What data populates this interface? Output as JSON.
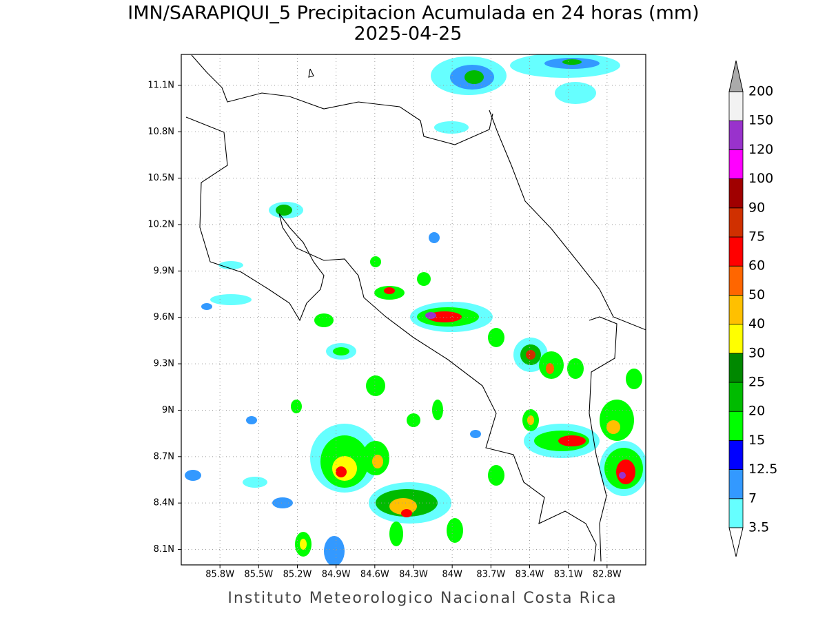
{
  "chart_data": {
    "type": "map",
    "title": "IMN/SARAPIQUI_5 Precipitacion Acumulada en 24 horas (mm)",
    "subtitle": "2025-04-25",
    "footer": "Instituto Meteorologico Nacional Costa Rica",
    "xlim": [
      -86.1,
      -82.5
    ],
    "ylim": [
      8.0,
      11.3
    ],
    "xticks": [
      {
        "value": -85.8,
        "label": "85.8W"
      },
      {
        "value": -85.5,
        "label": "85.5W"
      },
      {
        "value": -85.2,
        "label": "85.2W"
      },
      {
        "value": -84.9,
        "label": "84.9W"
      },
      {
        "value": -84.6,
        "label": "84.6W"
      },
      {
        "value": -84.3,
        "label": "84.3W"
      },
      {
        "value": -84.0,
        "label": "84W"
      },
      {
        "value": -83.7,
        "label": "83.7W"
      },
      {
        "value": -83.4,
        "label": "83.4W"
      },
      {
        "value": -83.1,
        "label": "83.1W"
      },
      {
        "value": -82.8,
        "label": "82.8W"
      }
    ],
    "yticks": [
      {
        "value": 8.1,
        "label": "8.1N"
      },
      {
        "value": 8.4,
        "label": "8.4N"
      },
      {
        "value": 8.7,
        "label": "8.7N"
      },
      {
        "value": 9.0,
        "label": "9N"
      },
      {
        "value": 9.3,
        "label": "9.3N"
      },
      {
        "value": 9.6,
        "label": "9.6N"
      },
      {
        "value": 9.9,
        "label": "9.9N"
      },
      {
        "value": 10.2,
        "label": "10.2N"
      },
      {
        "value": 10.5,
        "label": "10.5N"
      },
      {
        "value": 10.8,
        "label": "10.8N"
      },
      {
        "value": 11.1,
        "label": "11.1N"
      }
    ],
    "grid": true,
    "colorbar": {
      "levels": [
        3.5,
        7,
        12.5,
        15,
        20,
        25,
        30,
        40,
        50,
        60,
        75,
        90,
        100,
        120,
        150,
        200
      ],
      "colors": [
        "#66ffff",
        "#3399ff",
        "#0000ff",
        "#00ff00",
        "#00bb00",
        "#008800",
        "#ffff00",
        "#ffc000",
        "#ff6600",
        "#ff0000",
        "#d03000",
        "#a00000",
        "#ff00ff",
        "#9932cc",
        "#f2f2f2"
      ],
      "over_color": "#aaaaaa",
      "under_color": "#ffffff"
    }
  }
}
